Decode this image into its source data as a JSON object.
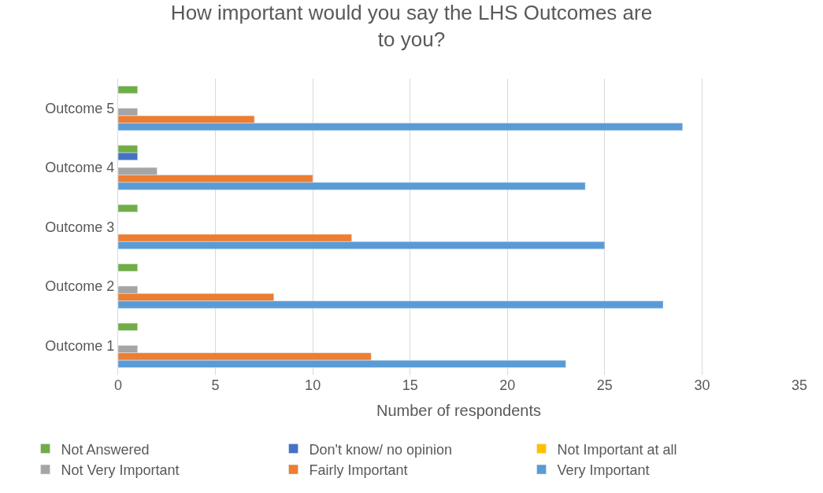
{
  "chart_data": {
    "type": "bar",
    "orientation": "horizontal",
    "title": "How important would you say the LHS Outcomes are to you?",
    "xlabel": "Number of respondents",
    "categories": [
      "Outcome 5",
      "Outcome 4",
      "Outcome 3",
      "Outcome 2",
      "Outcome 1"
    ],
    "series": [
      {
        "name": "Not Answered",
        "color": "#70ad47",
        "values": [
          1,
          1,
          1,
          1,
          1
        ]
      },
      {
        "name": "Don't know/ no opinion",
        "color": "#4472c4",
        "values": [
          null,
          1,
          null,
          null,
          null
        ]
      },
      {
        "name": "Not Important at all",
        "color": "#ffc000",
        "values": [
          null,
          null,
          null,
          null,
          null
        ]
      },
      {
        "name": "Not Very Important",
        "color": "#a5a5a5",
        "values": [
          1,
          2,
          null,
          1,
          1
        ]
      },
      {
        "name": "Fairly Important",
        "color": "#ed7d31",
        "values": [
          7,
          10,
          12,
          8,
          13
        ]
      },
      {
        "name": "Very Important",
        "color": "#5b9bd5",
        "values": [
          29,
          24,
          25,
          28,
          23
        ]
      }
    ],
    "xlim": [
      0,
      35
    ],
    "xticks": [
      0,
      5,
      10,
      15,
      20,
      25,
      30,
      35
    ],
    "grid": "x",
    "legend": "bottom"
  }
}
